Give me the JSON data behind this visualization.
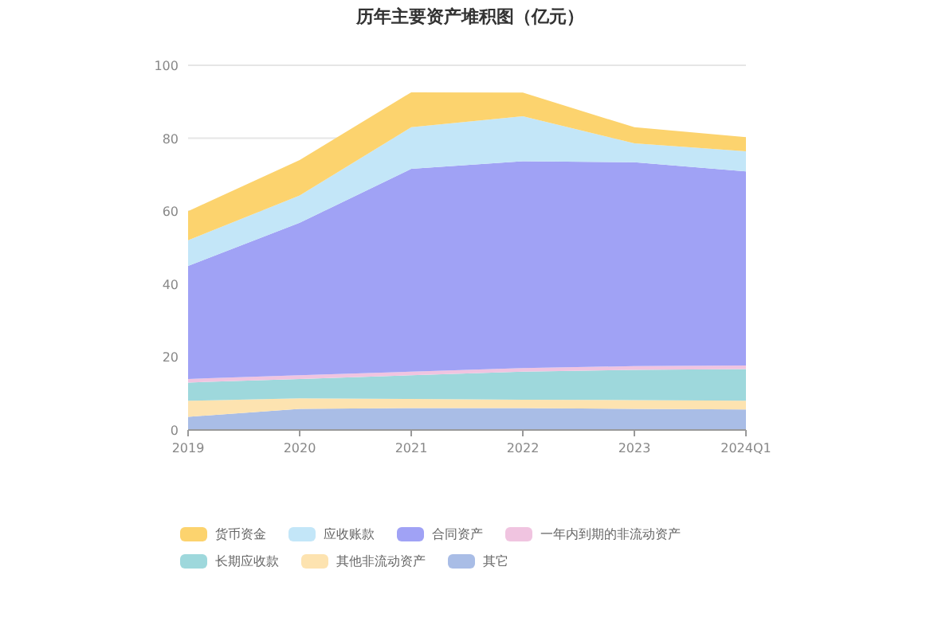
{
  "chart_data": {
    "type": "area",
    "stacked": true,
    "title": "历年主要资产堆积图（亿元）",
    "categories": [
      "2019",
      "2020",
      "2021",
      "2022",
      "2023",
      "2024Q1"
    ],
    "ylim": [
      0,
      100
    ],
    "yticks": [
      0,
      20,
      40,
      60,
      80,
      100
    ],
    "grid": "y",
    "legend": "bottom",
    "series": [
      {
        "name": "货币资金",
        "color": "#fcd36e",
        "values": [
          8,
          9.7,
          9.6,
          6.5,
          4.4,
          3.9
        ]
      },
      {
        "name": "应收账款",
        "color": "#c3e6f8",
        "values": [
          7,
          7.5,
          11.4,
          12.3,
          5.2,
          5.5
        ]
      },
      {
        "name": "合同资产",
        "color": "#a0a2f5",
        "values": [
          31,
          41.8,
          55.6,
          56.7,
          55.9,
          53.2
        ]
      },
      {
        "name": "一年内到期的非流动资产",
        "color": "#f0c4e0",
        "values": [
          1,
          1,
          1,
          1,
          1,
          1
        ]
      },
      {
        "name": "长期应收款",
        "color": "#9ed8dc",
        "values": [
          5,
          5.3,
          6.5,
          7.7,
          8.3,
          8.7
        ]
      },
      {
        "name": "其他非流动资产",
        "color": "#fde3b0",
        "values": [
          4.4,
          2.9,
          2.5,
          2.3,
          2.4,
          2.4
        ]
      },
      {
        "name": "其它",
        "color": "#a9bde6",
        "values": [
          3.6,
          5.8,
          6,
          6,
          5.8,
          5.6
        ]
      }
    ]
  }
}
